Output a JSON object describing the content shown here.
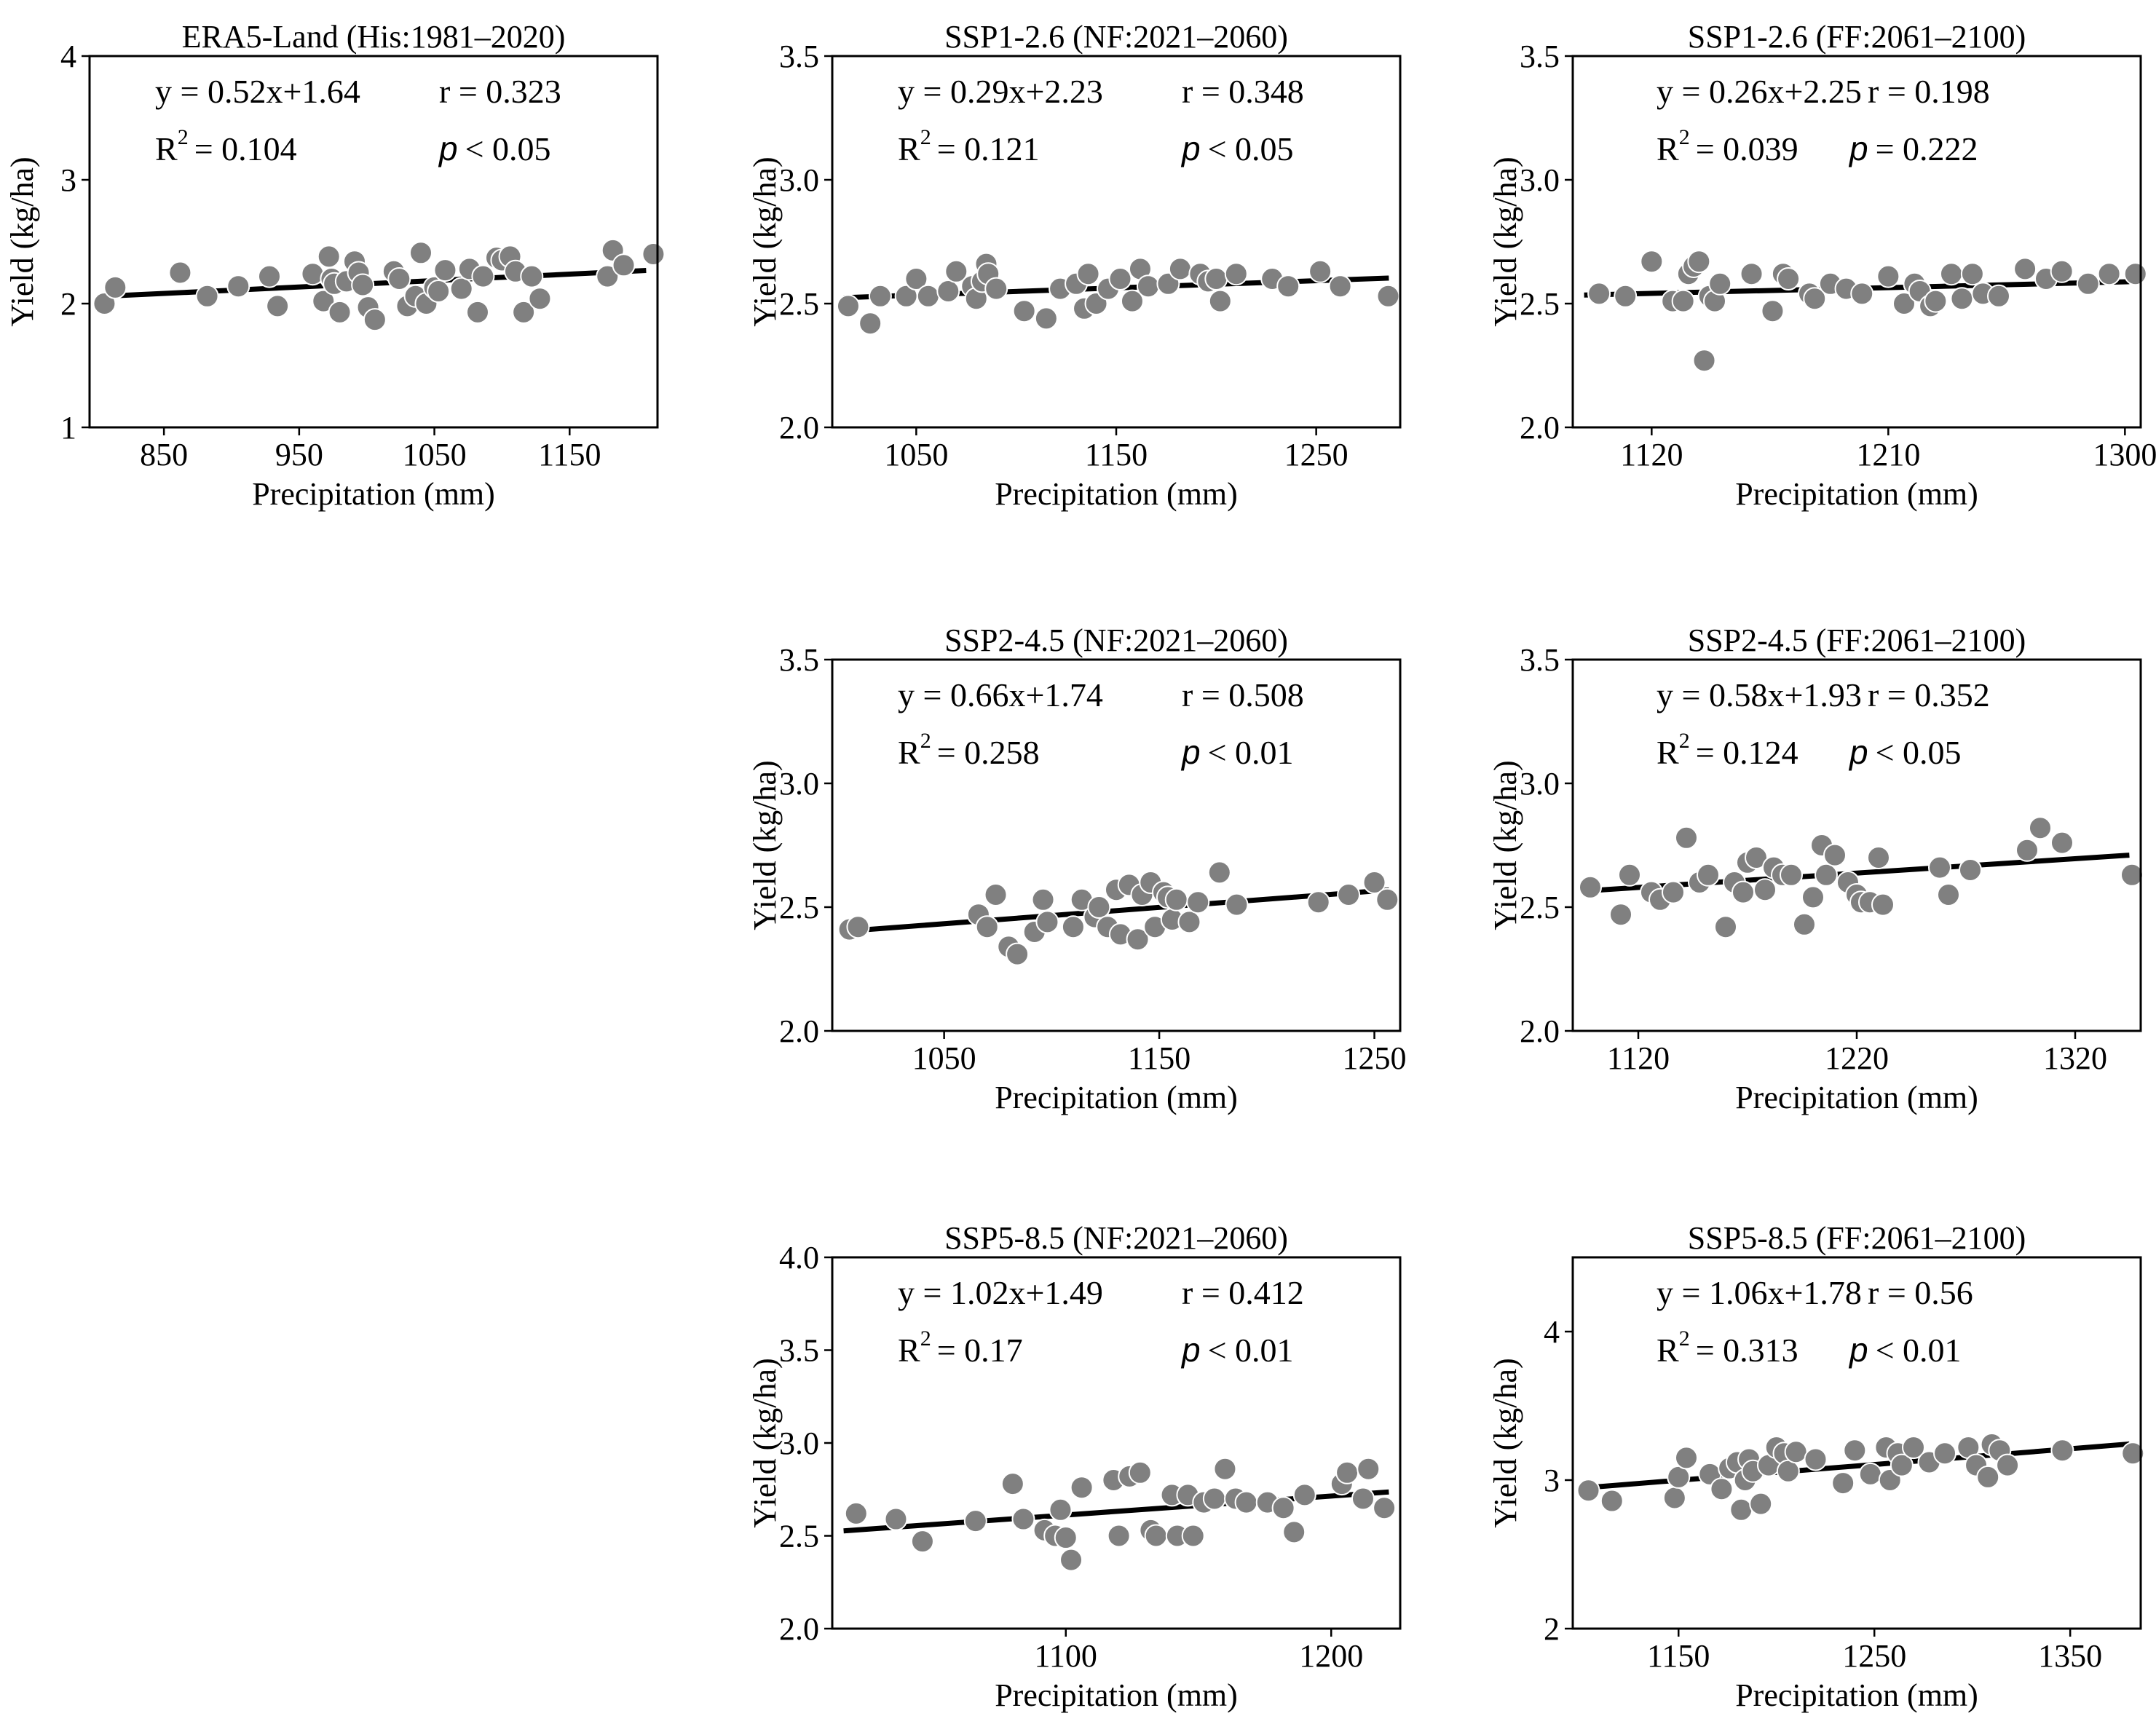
{
  "chart_data": [
    {
      "type": "scatter",
      "title": "ERA5-Land (His:1981–2020)",
      "xlabel": "Precipitation (mm)",
      "ylabel": "Yield (kg/ha)",
      "xlim": [
        795,
        1215
      ],
      "ylim": [
        1,
        4
      ],
      "xticks": [
        850,
        950,
        1050,
        1150
      ],
      "yticks": [
        1,
        2,
        3,
        4
      ],
      "ytick_labels": [
        "1",
        "2",
        "3",
        "4"
      ],
      "equation": "y = 0.52x+1.64",
      "r_text": "r = 0.323",
      "r2_label": "R",
      "r2_value": "= 0.104",
      "p_symbol": "p",
      "p_value": "< 0.05",
      "fit": {
        "slope": 0.52,
        "intercept": 1.64
      },
      "x": [
        806,
        814,
        862,
        882,
        905,
        928,
        934,
        960,
        968,
        972,
        974,
        976,
        980,
        985,
        991,
        994,
        997,
        1001,
        1006,
        1020,
        1024,
        1030,
        1036,
        1040,
        1044,
        1050,
        1053,
        1058,
        1070,
        1076,
        1082,
        1086,
        1096,
        1100,
        1106,
        1110,
        1116,
        1122,
        1128,
        1178,
        1182,
        1190,
        1212
      ],
      "y": [
        2.0,
        2.13,
        2.25,
        2.06,
        2.14,
        2.22,
        1.98,
        2.24,
        2.02,
        2.38,
        2.2,
        2.16,
        1.93,
        2.18,
        2.34,
        2.25,
        2.15,
        1.97,
        1.87,
        2.26,
        2.2,
        1.98,
        2.06,
        2.41,
        2.0,
        2.13,
        2.1,
        2.27,
        2.12,
        2.28,
        1.93,
        2.22,
        2.37,
        2.35,
        2.38,
        2.26,
        1.93,
        2.22,
        2.04,
        2.22,
        2.43,
        2.31,
        2.4
      ]
    },
    {
      "type": "scatter",
      "title": "SSP1-2.6 (NF:2021–2060)",
      "xlabel": "Precipitation (mm)",
      "ylabel": "Yield (kg/ha)",
      "xlim": [
        1008,
        1292
      ],
      "ylim": [
        2.0,
        3.5
      ],
      "xticks": [
        1050,
        1150,
        1250
      ],
      "yticks": [
        2.0,
        2.5,
        3.0,
        3.5
      ],
      "ytick_labels": [
        "2.0",
        "2.5",
        "3.0",
        "3.5"
      ],
      "equation": "y = 0.29x+2.23",
      "r_text": "r = 0.348",
      "r2_label": "R",
      "r2_value": "= 0.121",
      "p_symbol": "p",
      "p_value": "< 0.05",
      "fit": {
        "slope": 0.29,
        "intercept": 2.23
      },
      "x": [
        1016,
        1027,
        1032,
        1045,
        1050,
        1056,
        1066,
        1070,
        1078,
        1080,
        1083,
        1085,
        1086,
        1090,
        1104,
        1115,
        1122,
        1130,
        1134,
        1136,
        1140,
        1146,
        1152,
        1158,
        1162,
        1166,
        1176,
        1182,
        1192,
        1196,
        1200,
        1202,
        1210,
        1228,
        1236,
        1252,
        1262,
        1286
      ],
      "y": [
        2.49,
        2.42,
        2.53,
        2.53,
        2.6,
        2.53,
        2.55,
        2.63,
        2.57,
        2.52,
        2.59,
        2.66,
        2.62,
        2.56,
        2.47,
        2.44,
        2.56,
        2.58,
        2.48,
        2.62,
        2.5,
        2.56,
        2.6,
        2.51,
        2.64,
        2.57,
        2.58,
        2.64,
        2.62,
        2.59,
        2.6,
        2.51,
        2.62,
        2.6,
        2.57,
        2.63,
        2.57,
        2.53
      ]
    },
    {
      "type": "scatter",
      "title": "SSP1-2.6 (FF:2061–2100)",
      "xlabel": "Precipitation (mm)",
      "ylabel": "Yield (kg/ha)",
      "xlim": [
        1090,
        1306
      ],
      "ylim": [
        2.0,
        3.5
      ],
      "xticks": [
        1120,
        1210,
        1300
      ],
      "yticks": [
        2.0,
        2.5,
        3.0,
        3.5
      ],
      "ytick_labels": [
        "2.0",
        "2.5",
        "3.0",
        "3.5"
      ],
      "equation": "y = 0.26x+2.25",
      "r_text": "r = 0.198",
      "r2_label": "R",
      "r2_value": "= 0.039",
      "p_symbol": "p",
      "p_value": "= 0.222",
      "fit": {
        "slope": 0.26,
        "intercept": 2.25
      },
      "x": [
        1100,
        1110,
        1120,
        1128,
        1132,
        1134,
        1136,
        1138,
        1140,
        1142,
        1144,
        1146,
        1158,
        1166,
        1170,
        1172,
        1180,
        1182,
        1188,
        1194,
        1200,
        1210,
        1216,
        1220,
        1222,
        1226,
        1228,
        1234,
        1238,
        1242,
        1246,
        1252,
        1262,
        1270,
        1276,
        1286,
        1294,
        1304
      ],
      "y": [
        2.54,
        2.53,
        2.67,
        2.51,
        2.51,
        2.62,
        2.65,
        2.67,
        2.27,
        2.53,
        2.51,
        2.58,
        2.62,
        2.47,
        2.62,
        2.6,
        2.54,
        2.52,
        2.58,
        2.56,
        2.54,
        2.61,
        2.5,
        2.58,
        2.55,
        2.49,
        2.51,
        2.62,
        2.52,
        2.62,
        2.54,
        2.53,
        2.64,
        2.6,
        2.63,
        2.58,
        2.62,
        2.62
      ]
    },
    {
      "type": "scatter",
      "title": "SSP2-4.5 (NF:2021–2060)",
      "xlabel": "Precipitation (mm)",
      "ylabel": "Yield (kg/ha)",
      "xlim": [
        998,
        1262
      ],
      "ylim": [
        2.0,
        3.5
      ],
      "xticks": [
        1050,
        1150,
        1250
      ],
      "yticks": [
        2.0,
        2.5,
        3.0,
        3.5
      ],
      "ytick_labels": [
        "2.0",
        "2.5",
        "3.0",
        "3.5"
      ],
      "equation": "y = 0.66x+1.74",
      "r_text": "r = 0.508",
      "r2_label": "R",
      "r2_value": "= 0.258",
      "p_symbol": "p",
      "p_value": "< 0.01",
      "fit": {
        "slope": 0.66,
        "intercept": 1.74
      },
      "x": [
        1006,
        1010,
        1066,
        1070,
        1074,
        1080,
        1084,
        1092,
        1096,
        1098,
        1110,
        1114,
        1120,
        1122,
        1126,
        1130,
        1132,
        1136,
        1140,
        1142,
        1146,
        1148,
        1152,
        1154,
        1156,
        1158,
        1164,
        1168,
        1178,
        1186,
        1224,
        1238,
        1250,
        1256
      ],
      "y": [
        2.41,
        2.42,
        2.47,
        2.42,
        2.55,
        2.34,
        2.31,
        2.4,
        2.53,
        2.44,
        2.42,
        2.53,
        2.46,
        2.5,
        2.42,
        2.57,
        2.39,
        2.59,
        2.37,
        2.55,
        2.6,
        2.42,
        2.56,
        2.54,
        2.45,
        2.53,
        2.44,
        2.52,
        2.64,
        2.51,
        2.52,
        2.55,
        2.6,
        2.53
      ]
    },
    {
      "type": "scatter",
      "title": "SSP2-4.5 (FF:2061–2100)",
      "xlabel": "Precipitation (mm)",
      "ylabel": "Yield (kg/ha)",
      "xlim": [
        1090,
        1350
      ],
      "ylim": [
        2.0,
        3.5
      ],
      "xticks": [
        1120,
        1220,
        1320
      ],
      "yticks": [
        2.0,
        2.5,
        3.0,
        3.5
      ],
      "ytick_labels": [
        "2.0",
        "2.5",
        "3.0",
        "3.5"
      ],
      "equation": "y = 0.58x+1.93",
      "r_text": "r = 0.352",
      "r2_label": "R",
      "r2_value": "= 0.124",
      "p_symbol": "p",
      "p_value": "< 0.05",
      "fit": {
        "slope": 0.58,
        "intercept": 1.93
      },
      "x": [
        1098,
        1112,
        1116,
        1126,
        1130,
        1136,
        1142,
        1148,
        1152,
        1160,
        1164,
        1168,
        1170,
        1174,
        1178,
        1182,
        1186,
        1190,
        1196,
        1200,
        1204,
        1206,
        1210,
        1216,
        1220,
        1222,
        1226,
        1230,
        1232,
        1258,
        1262,
        1272,
        1298,
        1304,
        1314,
        1346
      ],
      "y": [
        2.58,
        2.47,
        2.63,
        2.56,
        2.53,
        2.56,
        2.78,
        2.6,
        2.63,
        2.42,
        2.6,
        2.56,
        2.68,
        2.7,
        2.57,
        2.66,
        2.63,
        2.63,
        2.43,
        2.54,
        2.75,
        2.63,
        2.71,
        2.6,
        2.55,
        2.52,
        2.52,
        2.7,
        2.51,
        2.66,
        2.55,
        2.65,
        2.73,
        2.82,
        2.76,
        2.63
      ]
    },
    {
      "type": "scatter",
      "title": "SSP5-8.5 (NF:2021–2060)",
      "xlabel": "Precipitation (mm)",
      "ylabel": "Yield (kg/ha)",
      "xlim": [
        1012,
        1226
      ],
      "ylim": [
        2.0,
        4.0
      ],
      "xticks": [
        1100,
        1200
      ],
      "yticks": [
        2.0,
        2.5,
        3.0,
        3.5,
        4.0
      ],
      "ytick_labels": [
        "2.0",
        "2.5",
        "3.0",
        "3.5",
        "4.0"
      ],
      "equation": "y = 1.02x+1.49",
      "r_text": "r = 0.412",
      "r2_label": "R",
      "r2_value": "= 0.17",
      "p_symbol": "p",
      "p_value": "< 0.01",
      "fit": {
        "slope": 1.02,
        "intercept": 1.49
      },
      "x": [
        1021,
        1036,
        1046,
        1066,
        1080,
        1084,
        1092,
        1096,
        1098,
        1100,
        1102,
        1106,
        1118,
        1120,
        1124,
        1128,
        1132,
        1134,
        1140,
        1142,
        1146,
        1148,
        1152,
        1156,
        1160,
        1164,
        1168,
        1176,
        1182,
        1186,
        1190,
        1204,
        1206,
        1212,
        1214,
        1220
      ],
      "y": [
        2.62,
        2.59,
        2.47,
        2.58,
        2.78,
        2.59,
        2.53,
        2.5,
        2.64,
        2.49,
        2.37,
        2.76,
        2.8,
        2.5,
        2.82,
        2.84,
        2.53,
        2.5,
        2.72,
        2.5,
        2.72,
        2.5,
        2.68,
        2.7,
        2.86,
        2.7,
        2.68,
        2.68,
        2.65,
        2.52,
        2.72,
        2.78,
        2.84,
        2.7,
        2.86,
        2.65
      ]
    },
    {
      "type": "scatter",
      "title": "SSP5-8.5 (FF:2061–2100)",
      "xlabel": "Precipitation (mm)",
      "ylabel": "Yield (kg/ha)",
      "xlim": [
        1096,
        1386
      ],
      "ylim": [
        2,
        4.5
      ],
      "xticks": [
        1150,
        1250,
        1350
      ],
      "yticks": [
        2,
        3,
        4
      ],
      "ytick_labels": [
        "2",
        "3",
        "4"
      ],
      "equation": "y = 1.06x+1.78",
      "r_text": "r = 0.56",
      "r2_label": "R",
      "r2_value": "= 0.313",
      "p_symbol": "p",
      "p_value": "< 0.01",
      "fit": {
        "slope": 1.06,
        "intercept": 1.78
      },
      "x": [
        1104,
        1116,
        1148,
        1150,
        1154,
        1166,
        1172,
        1176,
        1180,
        1182,
        1184,
        1186,
        1188,
        1192,
        1196,
        1200,
        1204,
        1206,
        1210,
        1220,
        1234,
        1240,
        1248,
        1256,
        1258,
        1262,
        1264,
        1270,
        1278,
        1286,
        1298,
        1302,
        1308,
        1310,
        1314,
        1318,
        1346,
        1382
      ],
      "y": [
        2.93,
        2.86,
        2.88,
        3.02,
        3.15,
        3.04,
        2.94,
        3.08,
        3.12,
        2.8,
        3.0,
        3.14,
        3.06,
        2.84,
        3.1,
        3.22,
        3.18,
        3.06,
        3.19,
        3.14,
        2.98,
        3.2,
        3.04,
        3.22,
        3.0,
        3.18,
        3.1,
        3.22,
        3.12,
        3.18,
        3.22,
        3.1,
        3.02,
        3.24,
        3.2,
        3.1,
        3.2,
        3.18
      ]
    }
  ]
}
